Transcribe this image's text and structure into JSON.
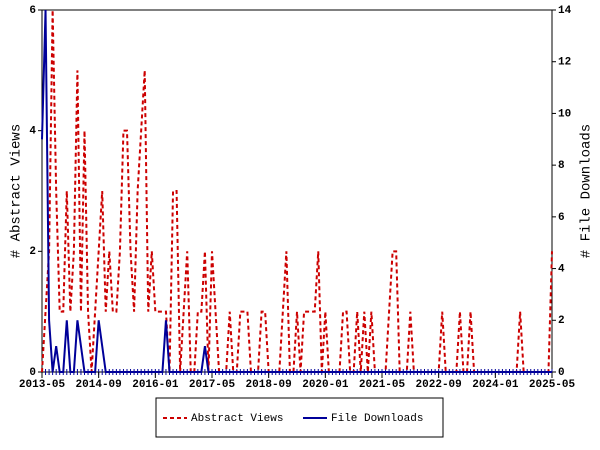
{
  "chart_data": {
    "type": "line",
    "x": [
      "2013-05",
      "2013-06",
      "2013-07",
      "2013-08",
      "2013-09",
      "2013-10",
      "2013-11",
      "2013-12",
      "2014-01",
      "2014-02",
      "2014-03",
      "2014-04",
      "2014-05",
      "2014-06",
      "2014-07",
      "2014-08",
      "2014-09",
      "2014-10",
      "2014-11",
      "2014-12",
      "2015-01",
      "2015-02",
      "2015-03",
      "2015-04",
      "2015-05",
      "2015-06",
      "2015-07",
      "2015-08",
      "2015-09",
      "2015-10",
      "2015-11",
      "2015-12",
      "2016-01",
      "2016-02",
      "2016-03",
      "2016-04",
      "2016-05",
      "2016-06",
      "2016-07",
      "2016-08",
      "2016-09",
      "2016-10",
      "2016-11",
      "2016-12",
      "2017-01",
      "2017-02",
      "2017-03",
      "2017-04",
      "2017-05",
      "2017-06",
      "2017-07",
      "2017-08",
      "2017-09",
      "2017-10",
      "2017-11",
      "2017-12",
      "2018-01",
      "2018-02",
      "2018-03",
      "2018-04",
      "2018-05",
      "2018-06",
      "2018-07",
      "2018-08",
      "2018-09",
      "2018-10",
      "2018-11",
      "2018-12",
      "2019-01",
      "2019-02",
      "2019-03",
      "2019-04",
      "2019-05",
      "2019-06",
      "2019-07",
      "2019-08",
      "2019-09",
      "2019-10",
      "2019-11",
      "2019-12",
      "2020-01",
      "2020-02",
      "2020-03",
      "2020-04",
      "2020-05",
      "2020-06",
      "2020-07",
      "2020-08",
      "2020-09",
      "2020-10",
      "2020-11",
      "2020-12",
      "2021-01",
      "2021-02",
      "2021-03",
      "2021-04",
      "2021-05",
      "2021-06",
      "2021-07",
      "2021-08",
      "2021-09",
      "2021-10",
      "2021-11",
      "2021-12",
      "2022-01",
      "2022-02",
      "2022-03",
      "2022-04",
      "2022-05",
      "2022-06",
      "2022-07",
      "2022-08",
      "2022-09",
      "2022-10",
      "2022-11",
      "2022-12",
      "2023-01",
      "2023-02",
      "2023-03",
      "2023-04",
      "2023-05",
      "2023-06",
      "2023-07",
      "2023-08",
      "2023-09",
      "2023-10",
      "2023-11",
      "2023-12",
      "2024-01",
      "2024-02",
      "2024-03",
      "2024-04",
      "2024-05",
      "2024-06",
      "2024-07",
      "2024-08",
      "2024-09",
      "2024-10",
      "2024-11",
      "2024-12",
      "2025-01",
      "2025-02",
      "2025-03",
      "2025-04",
      "2025-05"
    ],
    "xticks": [
      "2013-05",
      "2014-09",
      "2016-01",
      "2017-05",
      "2018-09",
      "2020-01",
      "2021-05",
      "2022-09",
      "2024-01",
      "2025-05"
    ],
    "ylabel": "# Abstract Views",
    "y2label": "# File Downloads",
    "ylim": [
      0,
      6
    ],
    "yticks": [
      0,
      2,
      4,
      6
    ],
    "y2lim": [
      0,
      14
    ],
    "y2ticks": [
      0,
      2,
      4,
      6,
      8,
      10,
      12,
      14
    ],
    "legend": "bottom",
    "series": [
      {
        "name": "Abstract Views",
        "color": "#cc0000",
        "dashed": true,
        "values": [
          0,
          1,
          2,
          6,
          3,
          1,
          1,
          3,
          1,
          2,
          5,
          1,
          4,
          1,
          0,
          1,
          2,
          3,
          1,
          2,
          1,
          1,
          2,
          4,
          4,
          2,
          1,
          3,
          4,
          5,
          1,
          2,
          1,
          1,
          1,
          1,
          0,
          3,
          3,
          0,
          1,
          2,
          0,
          0,
          1,
          1,
          2,
          0,
          2,
          1,
          0,
          0,
          0,
          1,
          0,
          0,
          1,
          1,
          1,
          0,
          0,
          0,
          1,
          1,
          0,
          0,
          0,
          0,
          1,
          2,
          0,
          0,
          1,
          0,
          1,
          1,
          1,
          1,
          2,
          0,
          1,
          0,
          0,
          0,
          0,
          1,
          1,
          0,
          0,
          1,
          0,
          1,
          0,
          1,
          0,
          0,
          0,
          0,
          1,
          2,
          2,
          0,
          0,
          0,
          1,
          0,
          0,
          0,
          0,
          0,
          0,
          0,
          0,
          1,
          0,
          0,
          0,
          0,
          1,
          0,
          0,
          1,
          0,
          0,
          0,
          0,
          0,
          0,
          0,
          0,
          0,
          0,
          0,
          0,
          0,
          1,
          0,
          0,
          0,
          0,
          0,
          0,
          0,
          0,
          2
        ]
      },
      {
        "name": "File Downloads",
        "color": "#000099",
        "axis": "y2",
        "values": [
          9,
          14,
          2,
          0,
          1,
          0,
          0,
          2,
          0,
          0,
          2,
          1,
          0,
          0,
          0,
          0,
          2,
          1,
          0,
          0,
          0,
          0,
          0,
          0,
          0,
          0,
          0,
          0,
          0,
          0,
          0,
          0,
          0,
          0,
          0,
          2,
          0,
          0,
          0,
          0,
          0,
          0,
          0,
          0,
          0,
          0,
          1,
          0,
          0,
          0,
          0,
          0,
          0,
          0,
          0,
          0,
          0,
          0,
          0,
          0,
          0,
          0,
          0,
          0,
          0,
          0,
          0,
          0,
          0,
          0,
          0,
          0,
          0,
          0,
          0,
          0,
          0,
          0,
          0,
          0,
          0,
          0,
          0,
          0,
          0,
          0,
          0,
          0,
          0,
          0,
          0,
          0,
          0,
          0,
          0,
          0,
          0,
          0,
          0,
          0,
          0,
          0,
          0,
          0,
          0,
          0,
          0,
          0,
          0,
          0,
          0,
          0,
          0,
          0,
          0,
          0,
          0,
          0,
          0,
          0,
          0,
          0,
          0,
          0,
          0,
          0,
          0,
          0,
          0,
          0,
          0,
          0,
          0,
          0,
          0,
          0,
          0,
          0,
          0,
          0,
          0,
          0,
          0,
          0,
          0
        ]
      }
    ]
  }
}
